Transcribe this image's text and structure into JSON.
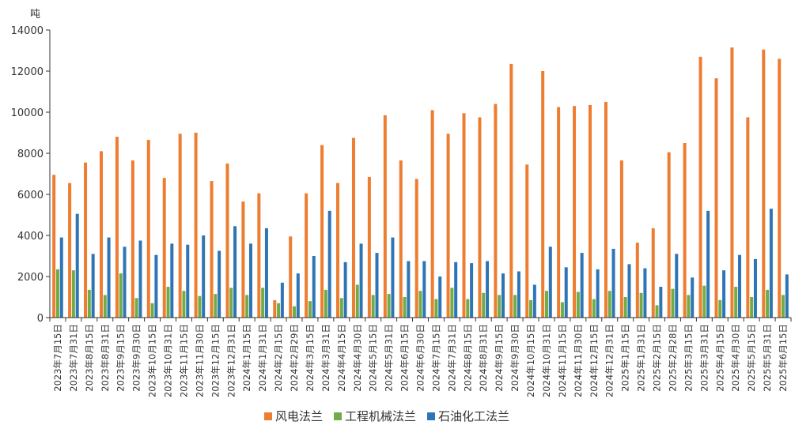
{
  "chart_data": {
    "type": "bar",
    "unit_label": "吨",
    "ylim": [
      0,
      14000
    ],
    "yticks": [
      0,
      2000,
      4000,
      6000,
      8000,
      10000,
      12000,
      14000
    ],
    "grid": false,
    "legend_position": "bottom",
    "categories": [
      "2023年7月15日",
      "2023年7月31日",
      "2023年8月15日",
      "2023年8月31日",
      "2023年9月15日",
      "2023年9月30日",
      "2023年10月15日",
      "2023年10月31日",
      "2023年11月15日",
      "2023年11月30日",
      "2023年12月15日",
      "2023年12月31日",
      "2024年1月15日",
      "2024年1月31日",
      "2024年2月15日",
      "2024年2月29日",
      "2024年3月15日",
      "2024年3月31日",
      "2024年4月15日",
      "2024年4月30日",
      "2024年5月15日",
      "2024年5月31日",
      "2024年6月15日",
      "2024年6月30日",
      "2024年7月15日",
      "2024年7月31日",
      "2024年8月15日",
      "2024年8月31日",
      "2024年9月15日",
      "2024年9月30日",
      "2024年10月15日",
      "2024年10月31日",
      "2024年11月15日",
      "2024年11月30日",
      "2024年12月15日",
      "2024年12月31日",
      "2025年1月15日",
      "2025年1月31日",
      "2025年2月15日",
      "2025年2月28日",
      "2025年3月15日",
      "2025年3月31日",
      "2025年4月15日",
      "2025年4月30日",
      "2025年5月15日",
      "2025年5月31日",
      "2025年6月15日"
    ],
    "series": [
      {
        "name": "风电法兰",
        "color": "#ED7D31",
        "values": [
          6950,
          6550,
          7550,
          8100,
          8800,
          7650,
          8650,
          6800,
          8950,
          9000,
          6650,
          7500,
          5650,
          6050,
          850,
          3950,
          6050,
          8400,
          6550,
          8750,
          6850,
          9850,
          7650,
          6750,
          10100,
          8950,
          9950,
          9750,
          10400,
          12350,
          7450,
          12000,
          10250,
          10300,
          10350,
          10500,
          7650,
          3650,
          4350,
          8050,
          8500,
          12700,
          11650,
          13150,
          9750,
          13050,
          12600
        ]
      },
      {
        "name": "工程机械法兰",
        "color": "#70AD47",
        "values": [
          2350,
          2300,
          1350,
          1100,
          2150,
          950,
          700,
          1500,
          1300,
          1050,
          1150,
          1450,
          1100,
          1450,
          700,
          550,
          800,
          1350,
          950,
          1600,
          1100,
          1150,
          1000,
          1300,
          900,
          1450,
          900,
          1200,
          1100,
          1100,
          850,
          1300,
          750,
          1250,
          900,
          1300,
          1000,
          1200,
          600,
          1400,
          1100,
          1550,
          850,
          1500,
          1000,
          1350,
          1100
        ]
      },
      {
        "name": "石油化工法兰",
        "color": "#2E75B6",
        "values": [
          3900,
          5050,
          3100,
          3900,
          3450,
          3750,
          3050,
          3600,
          3550,
          4000,
          3250,
          4450,
          3600,
          4350,
          1700,
          2150,
          3000,
          5200,
          2700,
          3600,
          3150,
          3900,
          2750,
          2750,
          2000,
          2700,
          2650,
          2750,
          2150,
          2250,
          1600,
          3450,
          2450,
          3150,
          2350,
          3350,
          2600,
          2400,
          1500,
          3100,
          1950,
          5200,
          2300,
          3050,
          2850,
          5300,
          2100
        ]
      }
    ]
  }
}
